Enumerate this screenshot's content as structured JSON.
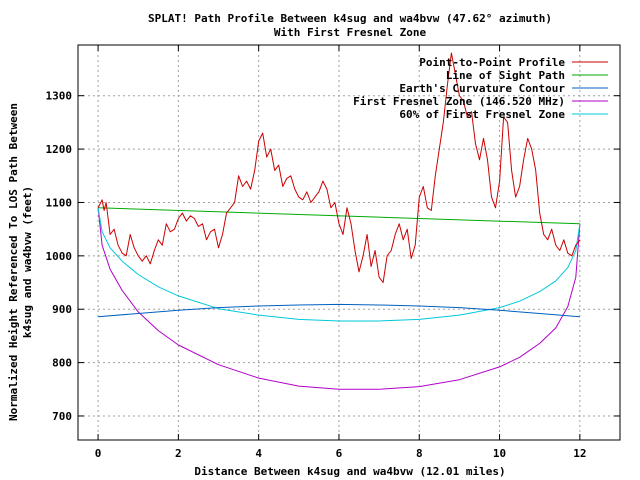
{
  "chart_data": {
    "type": "line",
    "title": "SPLAT! Path Profile Between k4sug and wa4bvw (47.62° azimuth)",
    "subtitle": "With First Fresnel Zone",
    "xlabel": "Distance Between k4sug and wa4bvw (12.01 miles)",
    "ylabel_line1": "Normalized Height Referenced To LOS Path Between",
    "ylabel_line2": "k4sug and wa4bvw (feet)",
    "xlim": [
      -0.5,
      13
    ],
    "ylim": [
      655,
      1395
    ],
    "x_ticks": [
      0,
      2,
      4,
      6,
      8,
      10,
      12
    ],
    "y_ticks": [
      700,
      800,
      900,
      1000,
      1100,
      1200,
      1300
    ],
    "grid": true,
    "legend_position": "top-right",
    "series": [
      {
        "name": "Point-to-Point Profile",
        "color": "#cc0000",
        "x": [
          0,
          0.1,
          0.15,
          0.2,
          0.3,
          0.4,
          0.5,
          0.6,
          0.7,
          0.8,
          0.9,
          1.0,
          1.1,
          1.2,
          1.3,
          1.4,
          1.5,
          1.6,
          1.7,
          1.8,
          1.9,
          2.0,
          2.1,
          2.2,
          2.3,
          2.4,
          2.5,
          2.6,
          2.7,
          2.8,
          2.9,
          3.0,
          3.1,
          3.2,
          3.3,
          3.4,
          3.5,
          3.6,
          3.7,
          3.8,
          3.9,
          4.0,
          4.1,
          4.2,
          4.3,
          4.4,
          4.5,
          4.6,
          4.7,
          4.8,
          4.9,
          5.0,
          5.1,
          5.2,
          5.3,
          5.4,
          5.5,
          5.6,
          5.7,
          5.8,
          5.9,
          6.0,
          6.1,
          6.2,
          6.3,
          6.4,
          6.5,
          6.6,
          6.7,
          6.8,
          6.9,
          7.0,
          7.1,
          7.2,
          7.3,
          7.4,
          7.5,
          7.6,
          7.7,
          7.8,
          7.9,
          8.0,
          8.1,
          8.2,
          8.3,
          8.4,
          8.5,
          8.6,
          8.7,
          8.8,
          8.9,
          9.0,
          9.1,
          9.2,
          9.3,
          9.4,
          9.5,
          9.6,
          9.7,
          9.8,
          9.9,
          10.0,
          10.1,
          10.2,
          10.3,
          10.4,
          10.5,
          10.6,
          10.7,
          10.8,
          10.9,
          11.0,
          11.1,
          11.2,
          11.3,
          11.4,
          11.5,
          11.6,
          11.7,
          11.8,
          11.9,
          12.0
        ],
        "values": [
          1090,
          1105,
          1085,
          1100,
          1040,
          1050,
          1020,
          1005,
          1000,
          1040,
          1015,
          1000,
          990,
          1000,
          985,
          1010,
          1030,
          1020,
          1060,
          1045,
          1050,
          1070,
          1080,
          1065,
          1075,
          1070,
          1055,
          1060,
          1030,
          1045,
          1050,
          1015,
          1040,
          1080,
          1090,
          1100,
          1150,
          1130,
          1140,
          1125,
          1160,
          1215,
          1230,
          1185,
          1200,
          1160,
          1170,
          1130,
          1145,
          1150,
          1125,
          1110,
          1105,
          1120,
          1100,
          1110,
          1120,
          1140,
          1125,
          1090,
          1100,
          1060,
          1040,
          1090,
          1060,
          1010,
          970,
          1000,
          1040,
          980,
          1010,
          960,
          950,
          1000,
          1010,
          1040,
          1060,
          1030,
          1050,
          995,
          1020,
          1110,
          1130,
          1090,
          1085,
          1150,
          1200,
          1250,
          1320,
          1380,
          1340,
          1300,
          1290,
          1260,
          1270,
          1210,
          1180,
          1220,
          1180,
          1110,
          1090,
          1140,
          1260,
          1250,
          1160,
          1110,
          1130,
          1180,
          1220,
          1200,
          1160,
          1080,
          1040,
          1030,
          1050,
          1020,
          1010,
          1030,
          1005,
          1000,
          1020,
          1030
        ],
        "line_width": 1
      },
      {
        "name": "Line of Sight Path",
        "color": "#00aa00",
        "x": [
          0,
          12
        ],
        "values": [
          1090,
          1060
        ],
        "line_width": 1
      },
      {
        "name": "Earth's Curvature Contour",
        "color": "#0060c0",
        "x": [
          0,
          1,
          2,
          3,
          4,
          5,
          6,
          7,
          8,
          9,
          10,
          11,
          12
        ],
        "values": [
          886,
          892,
          898,
          903,
          906,
          908,
          909,
          908,
          906,
          903,
          898,
          892,
          886
        ],
        "line_width": 1
      },
      {
        "name": "First Fresnel Zone (146.520 MHz)",
        "color": "#b000c8",
        "x": [
          0,
          0.1,
          0.3,
          0.6,
          1,
          1.5,
          2,
          3,
          4,
          5,
          6,
          7,
          8,
          9,
          10,
          10.5,
          11,
          11.4,
          11.7,
          11.9,
          12
        ],
        "values": [
          1090,
          1020,
          975,
          935,
          895,
          860,
          833,
          796,
          771,
          756,
          750,
          750,
          755,
          768,
          792,
          810,
          836,
          865,
          905,
          960,
          1060
        ],
        "line_width": 1
      },
      {
        "name": "60% of First Fresnel Zone",
        "color": "#00c8d8",
        "x": [
          0,
          0.1,
          0.3,
          0.6,
          1,
          1.5,
          2,
          3,
          4,
          5,
          6,
          7,
          8,
          9,
          10,
          10.5,
          11,
          11.4,
          11.7,
          11.9,
          12
        ],
        "values": [
          1090,
          1045,
          1015,
          990,
          965,
          942,
          925,
          901,
          889,
          881,
          878,
          878,
          881,
          889,
          903,
          915,
          933,
          953,
          978,
          1010,
          1060
        ],
        "line_width": 1
      }
    ]
  }
}
